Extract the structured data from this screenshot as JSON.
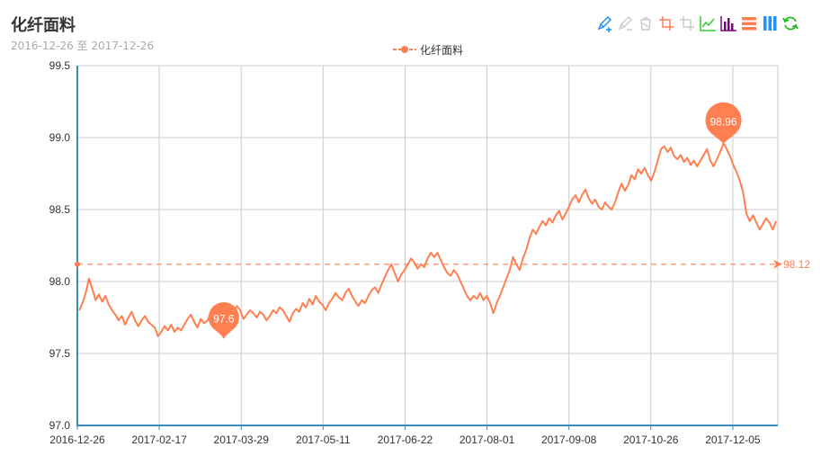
{
  "header": {
    "title": "化纤面料",
    "subtitle": "2016-12-26 至 2017-12-26"
  },
  "toolbox": [
    {
      "name": "mark-pen-icon",
      "color": "#1e90ff"
    },
    {
      "name": "mark-undo-icon",
      "color": "#cccccc"
    },
    {
      "name": "mark-clear-icon",
      "color": "#cccccc"
    },
    {
      "name": "data-zoom-icon",
      "color": "#ff7f50"
    },
    {
      "name": "data-zoom-reset-icon",
      "color": "#cccccc"
    },
    {
      "name": "line-chart-icon",
      "color": "#32cd32"
    },
    {
      "name": "bar-chart-icon",
      "color": "#800080"
    },
    {
      "name": "stack-icon",
      "color": "#ff7f50"
    },
    {
      "name": "tiled-icon",
      "color": "#1e90ff"
    },
    {
      "name": "restore-icon",
      "color": "#22bb22"
    }
  ],
  "chart_data": {
    "type": "line",
    "title": "化纤面料",
    "subtitle": "2016-12-26 至 2017-12-26",
    "legend": [
      "化纤面料"
    ],
    "legend_position": "top-center",
    "grid": true,
    "color": "#ff7f50",
    "ylim": [
      97.0,
      99.5
    ],
    "yticks": [
      "97.0",
      "97.5",
      "98.0",
      "98.5",
      "99.0",
      "99.5"
    ],
    "xticks": [
      "2016-12-26",
      "2017-02-17",
      "2017-03-29",
      "2017-05-11",
      "2017-06-22",
      "2017-08-01",
      "2017-09-08",
      "2017-10-26",
      "2017-12-05"
    ],
    "series": [
      {
        "name": "化纤面料",
        "values": [
          97.8,
          97.85,
          97.92,
          98.02,
          97.95,
          97.87,
          97.91,
          97.86,
          97.9,
          97.84,
          97.8,
          97.77,
          97.73,
          97.76,
          97.7,
          97.75,
          97.79,
          97.73,
          97.69,
          97.73,
          97.76,
          97.72,
          97.7,
          97.68,
          97.62,
          97.65,
          97.69,
          97.66,
          97.7,
          97.65,
          97.68,
          97.66,
          97.7,
          97.74,
          97.77,
          97.72,
          97.68,
          97.74,
          97.71,
          97.73,
          97.77,
          97.73,
          97.68,
          97.66,
          97.61,
          97.67,
          97.73,
          97.79,
          97.83,
          97.8,
          97.74,
          97.77,
          97.8,
          97.78,
          97.75,
          97.79,
          97.77,
          97.73,
          97.76,
          97.8,
          97.78,
          97.82,
          97.8,
          97.76,
          97.72,
          97.78,
          97.81,
          97.79,
          97.85,
          97.82,
          97.88,
          97.84,
          97.9,
          97.86,
          97.84,
          97.8,
          97.85,
          97.88,
          97.92,
          97.89,
          97.87,
          97.92,
          97.95,
          97.9,
          97.86,
          97.83,
          97.87,
          97.85,
          97.9,
          97.94,
          97.96,
          97.92,
          97.98,
          98.03,
          98.08,
          98.12,
          98.06,
          98.0,
          98.05,
          98.08,
          98.12,
          98.16,
          98.13,
          98.09,
          98.12,
          98.1,
          98.16,
          98.2,
          98.17,
          98.2,
          98.15,
          98.1,
          98.06,
          98.04,
          98.08,
          98.05,
          98.0,
          97.95,
          97.9,
          97.87,
          97.9,
          97.88,
          97.92,
          97.87,
          97.9,
          97.85,
          97.78,
          97.85,
          97.9,
          97.96,
          98.02,
          98.08,
          98.17,
          98.12,
          98.08,
          98.16,
          98.22,
          98.3,
          98.36,
          98.33,
          98.38,
          98.42,
          98.39,
          98.44,
          98.41,
          98.46,
          98.49,
          98.43,
          98.47,
          98.52,
          98.57,
          98.6,
          98.55,
          98.6,
          98.64,
          98.58,
          98.54,
          98.57,
          98.52,
          98.5,
          98.55,
          98.52,
          98.5,
          98.55,
          98.62,
          98.68,
          98.63,
          98.67,
          98.74,
          98.71,
          98.78,
          98.75,
          98.79,
          98.74,
          98.7,
          98.76,
          98.84,
          98.92,
          98.94,
          98.9,
          98.93,
          98.87,
          98.85,
          98.88,
          98.83,
          98.86,
          98.81,
          98.84,
          98.8,
          98.84,
          98.88,
          98.92,
          98.84,
          98.8,
          98.85,
          98.9,
          98.96,
          98.92,
          98.87,
          98.81,
          98.76,
          98.7,
          98.62,
          98.47,
          98.42,
          98.46,
          98.41,
          98.36,
          98.4,
          98.44,
          98.41,
          98.36,
          98.42
        ]
      }
    ],
    "markPoint": [
      {
        "label": "98.96",
        "type": "max",
        "value": 98.96
      },
      {
        "label": "97.6",
        "type": "min",
        "value": 97.6
      }
    ],
    "markLine": {
      "label": "98.12",
      "type": "average",
      "value": 98.12
    }
  }
}
